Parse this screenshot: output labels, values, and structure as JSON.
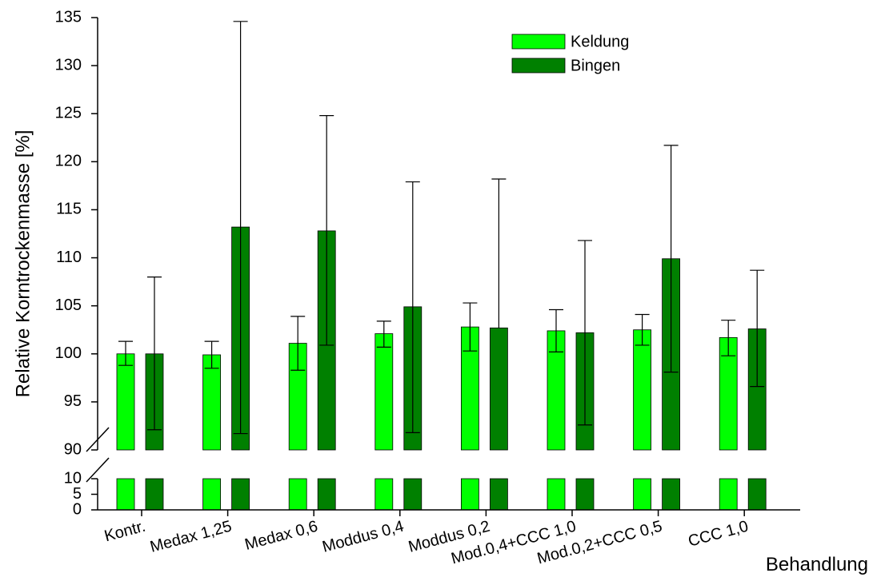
{
  "chart_data": {
    "type": "bar",
    "categories": [
      "Kontr.",
      "Medax 1,25",
      "Medax 0,6",
      "Moddus 0,4",
      "Moddus 0,2",
      "Mod.0,4+CCC 1,0",
      "Mod.0,2+CCC 0,5",
      "CCC 1,0"
    ],
    "series": [
      {
        "name": "Keldung",
        "color": "#00ff00",
        "values": [
          100.0,
          99.9,
          101.1,
          102.1,
          102.8,
          102.4,
          102.5,
          101.7
        ],
        "error_low": [
          98.8,
          98.5,
          98.3,
          100.7,
          100.3,
          100.2,
          100.9,
          99.8
        ],
        "error_high": [
          101.3,
          101.3,
          103.9,
          103.4,
          105.3,
          104.6,
          104.1,
          103.5
        ]
      },
      {
        "name": "Bingen",
        "color": "#008000",
        "values": [
          100.0,
          113.2,
          112.8,
          104.9,
          102.7,
          102.2,
          109.9,
          102.6
        ],
        "error_low": [
          92.1,
          91.7,
          100.9,
          91.8,
          null,
          92.6,
          98.1,
          96.6
        ],
        "error_high": [
          108.0,
          134.6,
          124.8,
          117.9,
          118.2,
          111.8,
          121.7,
          108.7
        ]
      }
    ],
    "ylabel": "Relative Korntrockenmasse [%]",
    "xlabel": "Behandlung",
    "y_upper_ticks": [
      90,
      95,
      100,
      105,
      110,
      115,
      120,
      125,
      130,
      135
    ],
    "y_lower_ticks": [
      0,
      5,
      10
    ],
    "y_upper_range": [
      90,
      135
    ],
    "y_lower_range": [
      0,
      10
    ],
    "axis_break": true,
    "legend_position": "top-right",
    "grid": false
  }
}
